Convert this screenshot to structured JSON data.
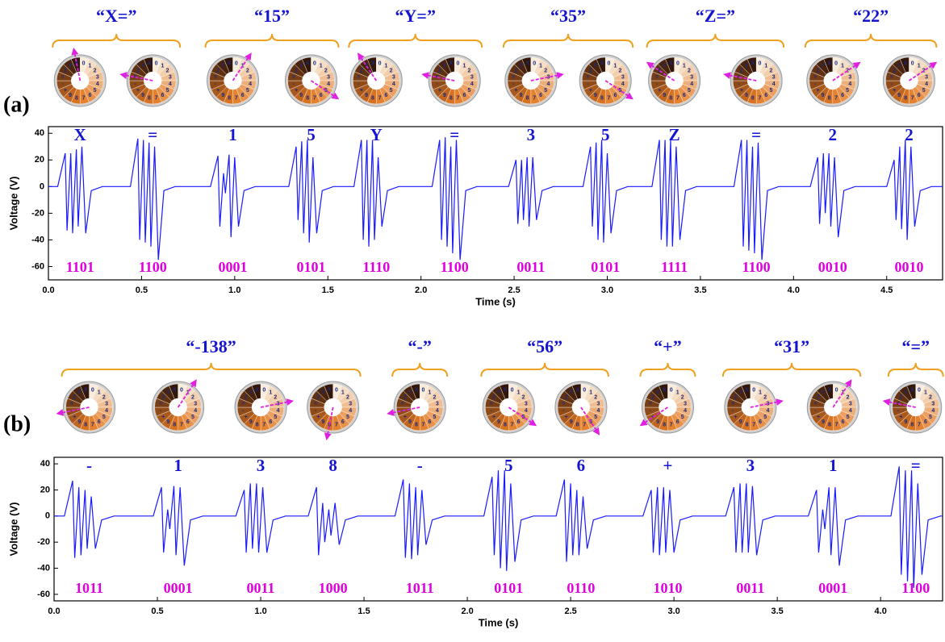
{
  "dial_labels": [
    "0",
    "1",
    "2",
    "3",
    "4",
    "5",
    "6",
    "7",
    "8",
    "9",
    "+",
    "-",
    "=",
    "Z",
    "Y",
    "X"
  ],
  "chart_data": [
    {
      "type": "line",
      "panel_label": "(a)",
      "xlabel": "Time (s)",
      "ylabel": "Voltage (V)",
      "xlim": [
        0,
        4.8
      ],
      "ylim": [
        -70,
        45
      ],
      "xticks": [
        {
          "value": 0,
          "label": "0.0"
        },
        0.5,
        {
          "value": 1,
          "label": "1.0"
        },
        1.5,
        {
          "value": 2,
          "label": "2.0"
        },
        2.5,
        {
          "value": 3,
          "label": "3.0"
        },
        3.5,
        {
          "value": 4,
          "label": "4.0"
        },
        4.5
      ],
      "yticks": [
        -60,
        -40,
        -20,
        0,
        20,
        40
      ],
      "groups": [
        {
          "label": "“X=”",
          "keys": [
            {
              "symbol": "X",
              "code": "1101",
              "x": 0.17
            },
            {
              "symbol": "=",
              "code": "1100",
              "x": 0.56
            }
          ]
        },
        {
          "label": "“15”",
          "keys": [
            {
              "symbol": "1",
              "code": "0001",
              "x": 0.99
            },
            {
              "symbol": "5",
              "code": "0101",
              "x": 1.41
            }
          ]
        },
        {
          "label": "“Y=”",
          "keys": [
            {
              "symbol": "Y",
              "code": "1110",
              "x": 1.76
            },
            {
              "symbol": "=",
              "code": "1100",
              "x": 2.18
            }
          ]
        },
        {
          "label": "“35”",
          "keys": [
            {
              "symbol": "3",
              "code": "0011",
              "x": 2.59
            },
            {
              "symbol": "5",
              "code": "0101",
              "x": 2.99
            }
          ]
        },
        {
          "label": "“Z=”",
          "keys": [
            {
              "symbol": "Z",
              "code": "1111",
              "x": 3.36
            },
            {
              "symbol": "=",
              "code": "1100",
              "x": 3.8
            }
          ]
        },
        {
          "label": "“22”",
          "keys": [
            {
              "symbol": "2",
              "code": "0010",
              "x": 4.21
            },
            {
              "symbol": "2",
              "code": "0010",
              "x": 4.62
            }
          ]
        }
      ],
      "series": [
        {
          "color": "#1a1aff",
          "x": [
            0,
            0.05,
            0.09,
            0.1,
            0.12,
            0.13,
            0.15,
            0.16,
            0.18,
            0.2,
            0.23,
            0.29,
            0.44,
            0.48,
            0.49,
            0.51,
            0.52,
            0.54,
            0.55,
            0.57,
            0.59,
            0.62,
            0.68,
            0.87,
            0.91,
            0.92,
            0.94,
            0.95,
            0.97,
            0.98,
            1.0,
            1.02,
            1.05,
            1.11,
            1.29,
            1.33,
            1.34,
            1.36,
            1.37,
            1.39,
            1.4,
            1.42,
            1.44,
            1.47,
            1.53,
            1.64,
            1.68,
            1.69,
            1.71,
            1.72,
            1.74,
            1.75,
            1.77,
            1.79,
            1.82,
            1.88,
            2.06,
            2.1,
            2.11,
            2.13,
            2.14,
            2.16,
            2.17,
            2.19,
            2.21,
            2.24,
            2.3,
            2.47,
            2.51,
            2.52,
            2.54,
            2.55,
            2.57,
            2.58,
            2.6,
            2.62,
            2.65,
            2.71,
            2.87,
            2.91,
            2.92,
            2.94,
            2.95,
            2.97,
            2.98,
            3.0,
            3.02,
            3.05,
            3.11,
            3.24,
            3.28,
            3.29,
            3.31,
            3.32,
            3.34,
            3.35,
            3.37,
            3.39,
            3.42,
            3.48,
            3.68,
            3.72,
            3.73,
            3.75,
            3.76,
            3.78,
            3.79,
            3.81,
            3.83,
            3.86,
            3.92,
            4.09,
            4.13,
            4.14,
            4.16,
            4.17,
            4.19,
            4.2,
            4.22,
            4.24,
            4.27,
            4.33,
            4.5,
            4.54,
            4.55,
            4.57,
            4.58,
            4.6,
            4.61,
            4.63,
            4.65,
            4.68,
            4.74,
            4.8
          ],
          "values": [
            0,
            0,
            25,
            -33,
            25,
            -35,
            28,
            -30,
            30,
            -35,
            -3,
            0,
            0,
            36,
            -40,
            35,
            -42,
            33,
            -45,
            30,
            -55,
            -3,
            0,
            0,
            23,
            -30,
            10,
            -5,
            24,
            -38,
            22,
            -30,
            -3,
            0,
            0,
            30,
            -25,
            34,
            -35,
            35,
            -42,
            22,
            -35,
            -3,
            0,
            0,
            35,
            -40,
            35,
            -45,
            35,
            -40,
            22,
            -30,
            -3,
            0,
            0,
            35,
            -40,
            37,
            -45,
            30,
            -50,
            35,
            -55,
            -3,
            0,
            0,
            20,
            -28,
            20,
            -25,
            22,
            -30,
            22,
            -25,
            -3,
            0,
            0,
            30,
            -30,
            33,
            -40,
            35,
            -42,
            25,
            -35,
            -3,
            0,
            0,
            35,
            -40,
            35,
            -45,
            35,
            -45,
            30,
            -40,
            -3,
            0,
            0,
            35,
            -45,
            35,
            -48,
            30,
            -50,
            33,
            -55,
            -3,
            0,
            0,
            22,
            -28,
            25,
            -20,
            25,
            -30,
            22,
            -38,
            -3,
            0,
            0,
            20,
            -25,
            30,
            -32,
            35,
            -40,
            30,
            -30,
            -3,
            0,
            0
          ]
        }
      ]
    },
    {
      "type": "line",
      "panel_label": "(b)",
      "xlabel": "Time (s)",
      "ylabel": "Voltage (V)",
      "xlim": [
        0,
        4.3
      ],
      "ylim": [
        -65,
        45
      ],
      "xticks": [
        {
          "value": 0,
          "label": "0.0"
        },
        0.5,
        {
          "value": 1,
          "label": "1.0"
        },
        1.5,
        {
          "value": 2,
          "label": "2.0"
        },
        2.5,
        {
          "value": 3,
          "label": "3.0"
        },
        3.5,
        {
          "value": 4,
          "label": "4.0"
        }
      ],
      "yticks": [
        -60,
        -40,
        -20,
        0,
        20,
        40
      ],
      "groups": [
        {
          "label": "“-138”",
          "keys": [
            {
              "symbol": "-",
              "code": "1011",
              "x": 0.17
            },
            {
              "symbol": "1",
              "code": "0001",
              "x": 0.6
            },
            {
              "symbol": "3",
              "code": "0011",
              "x": 1.0
            },
            {
              "symbol": "8",
              "code": "1000",
              "x": 1.35
            }
          ]
        },
        {
          "label": "“-”",
          "keys": [
            {
              "symbol": "-",
              "code": "1011",
              "x": 1.77
            }
          ]
        },
        {
          "label": "“56”",
          "keys": [
            {
              "symbol": "5",
              "code": "0101",
              "x": 2.2
            },
            {
              "symbol": "6",
              "code": "0110",
              "x": 2.55
            }
          ]
        },
        {
          "label": "“+”",
          "keys": [
            {
              "symbol": "+",
              "code": "1010",
              "x": 2.97
            }
          ]
        },
        {
          "label": "“31”",
          "keys": [
            {
              "symbol": "3",
              "code": "0011",
              "x": 3.37
            },
            {
              "symbol": "1",
              "code": "0001",
              "x": 3.77
            }
          ]
        },
        {
          "label": "“=”",
          "keys": [
            {
              "symbol": "=",
              "code": "1100",
              "x": 4.17
            }
          ]
        }
      ],
      "series": [
        {
          "color": "#1a1aff",
          "x": [
            0,
            0.05,
            0.09,
            0.1,
            0.12,
            0.13,
            0.15,
            0.16,
            0.18,
            0.2,
            0.23,
            0.29,
            0.48,
            0.52,
            0.53,
            0.55,
            0.56,
            0.58,
            0.59,
            0.61,
            0.63,
            0.66,
            0.72,
            0.88,
            0.92,
            0.93,
            0.95,
            0.96,
            0.98,
            0.99,
            1.01,
            1.03,
            1.06,
            1.12,
            1.23,
            1.27,
            1.28,
            1.3,
            1.31,
            1.33,
            1.34,
            1.36,
            1.38,
            1.41,
            1.47,
            1.65,
            1.69,
            1.7,
            1.72,
            1.73,
            1.75,
            1.76,
            1.78,
            1.8,
            1.83,
            1.89,
            2.08,
            2.12,
            2.13,
            2.15,
            2.16,
            2.18,
            2.19,
            2.21,
            2.23,
            2.26,
            2.32,
            2.43,
            2.47,
            2.48,
            2.5,
            2.51,
            2.53,
            2.54,
            2.56,
            2.58,
            2.61,
            2.67,
            2.85,
            2.89,
            2.9,
            2.92,
            2.93,
            2.95,
            2.96,
            2.98,
            3.0,
            3.03,
            3.09,
            3.25,
            3.29,
            3.3,
            3.32,
            3.33,
            3.35,
            3.36,
            3.38,
            3.4,
            3.43,
            3.49,
            3.65,
            3.69,
            3.7,
            3.72,
            3.73,
            3.75,
            3.76,
            3.78,
            3.8,
            3.83,
            3.89,
            4.05,
            4.09,
            4.1,
            4.12,
            4.13,
            4.15,
            4.16,
            4.18,
            4.2,
            4.23,
            4.29,
            4.3
          ],
          "values": [
            0,
            0,
            27,
            -32,
            22,
            -30,
            20,
            -25,
            15,
            -25,
            -3,
            0,
            0,
            22,
            -28,
            5,
            -10,
            23,
            -30,
            22,
            -38,
            -3,
            0,
            0,
            20,
            -28,
            25,
            -25,
            25,
            -28,
            22,
            -28,
            -3,
            0,
            0,
            22,
            -30,
            10,
            -20,
            5,
            -15,
            10,
            -22,
            -3,
            0,
            0,
            28,
            -32,
            25,
            -33,
            22,
            -30,
            20,
            -22,
            -3,
            0,
            0,
            30,
            -30,
            35,
            -40,
            35,
            -42,
            25,
            -35,
            -3,
            0,
            0,
            28,
            -35,
            25,
            -30,
            20,
            -30,
            15,
            -25,
            -3,
            0,
            0,
            20,
            -28,
            22,
            -30,
            22,
            -28,
            20,
            -28,
            -3,
            0,
            0,
            22,
            -28,
            25,
            -28,
            25,
            -28,
            23,
            -30,
            -3,
            0,
            0,
            20,
            -28,
            5,
            -10,
            22,
            -30,
            22,
            -38,
            -3,
            0,
            0,
            38,
            -45,
            35,
            -50,
            35,
            -55,
            25,
            -45,
            -3,
            0,
            0
          ]
        }
      ]
    }
  ]
}
